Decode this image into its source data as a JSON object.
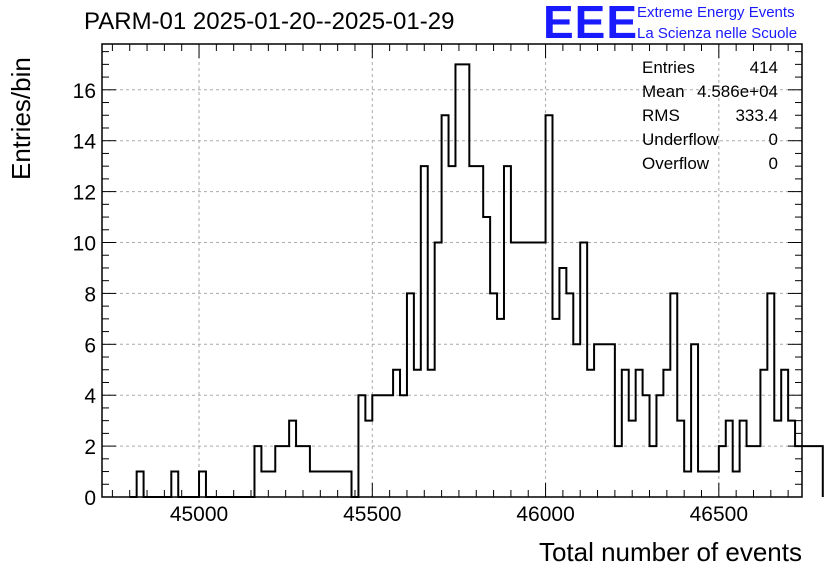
{
  "title": "PARM-01 2025-01-20--2025-01-29",
  "logo": {
    "big": "EEE",
    "line1": "Extreme Energy Events",
    "line2": "La Scienza nelle Scuole",
    "color": "#1a1aff"
  },
  "stats": [
    {
      "label": "Entries",
      "value": "414"
    },
    {
      "label": "Mean",
      "value": "4.586e+04"
    },
    {
      "label": "RMS",
      "value": "333.4"
    },
    {
      "label": "Underflow",
      "value": "0"
    },
    {
      "label": "Overflow",
      "value": "0"
    }
  ],
  "chart_data": {
    "type": "histogram",
    "title": "PARM-01 2025-01-20--2025-01-29",
    "xlabel": "Total number of events",
    "ylabel": "Entries/bin",
    "xlim": [
      44720,
      46740
    ],
    "ylim": [
      0,
      17.8
    ],
    "bin_width": 20,
    "first_bin_low": 44800,
    "x_ticks": [
      45000,
      45500,
      46000,
      46500
    ],
    "y_ticks": [
      0,
      2,
      4,
      6,
      8,
      10,
      12,
      14,
      16
    ],
    "grid": true,
    "values": [
      0,
      1,
      0,
      0,
      0,
      0,
      1,
      0,
      0,
      0,
      1,
      0,
      0,
      0,
      0,
      0,
      0,
      0,
      2,
      1,
      1,
      2,
      2,
      3,
      2,
      2,
      1,
      1,
      1,
      1,
      1,
      1,
      0,
      4,
      3,
      4,
      4,
      4,
      5,
      4,
      8,
      5,
      13,
      5,
      10,
      15,
      13,
      17,
      17,
      13,
      13,
      11,
      8,
      7,
      13,
      10,
      10,
      10,
      10,
      10,
      15,
      7,
      9,
      8,
      6,
      10,
      5,
      6,
      6,
      6,
      2,
      5,
      3,
      5,
      4,
      2,
      4,
      5,
      8,
      3,
      1,
      6,
      1,
      1,
      1,
      2,
      3,
      1,
      3,
      2,
      2,
      5,
      8,
      3,
      5,
      3,
      2,
      2,
      2,
      2
    ]
  }
}
